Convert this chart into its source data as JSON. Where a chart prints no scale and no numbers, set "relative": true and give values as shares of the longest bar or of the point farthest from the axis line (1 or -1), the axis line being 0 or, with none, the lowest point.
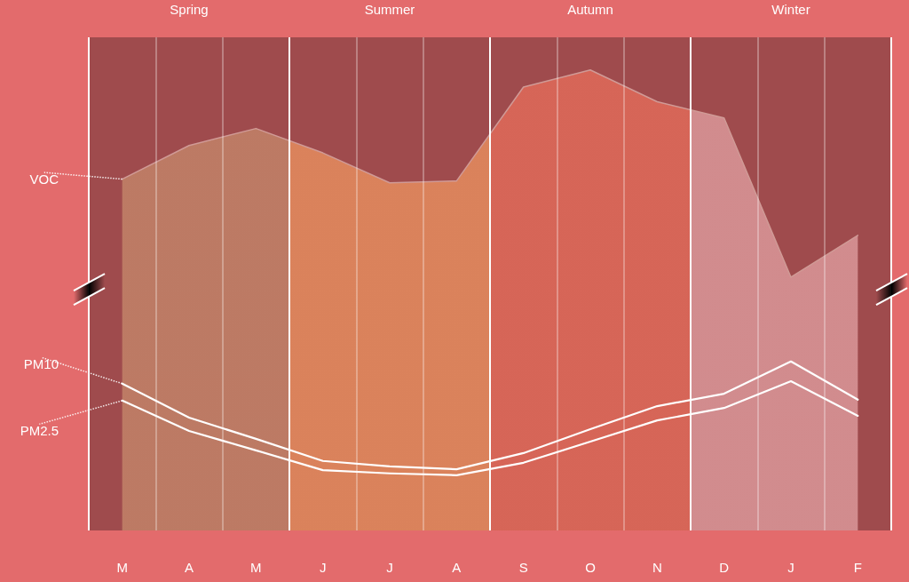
{
  "chart_data": {
    "type": "line",
    "relative": true,
    "grid": "x",
    "categories": [
      "M",
      "A",
      "M",
      "J",
      "J",
      "A",
      "S",
      "O",
      "N",
      "D",
      "J",
      "F"
    ],
    "series": [
      {
        "name": "VOC",
        "type": "area",
        "color": "#d09a96",
        "colors": [
          "#c4866a",
          "#c4866a",
          "#c4866a",
          "#e9905f",
          "#e9905f",
          "#e9905f",
          "#e46c5a",
          "#e46c5a",
          "#e46c5a",
          "#de9c9e",
          "#de9c9e",
          "#de9c9e"
        ],
        "values": [
          0.763,
          0.836,
          0.873,
          0.82,
          0.755,
          0.759,
          0.963,
          1,
          0.931,
          0.896,
          0.55,
          0.641
        ]
      },
      {
        "name": "PM10",
        "color": "#ffffff",
        "values": [
          0.319,
          0.245,
          0.199,
          0.151,
          0.139,
          0.133,
          0.168,
          0.22,
          0.27,
          0.297,
          0.367,
          0.284
        ]
      },
      {
        "name": "PM2.5",
        "color": "#ffffff",
        "values": [
          0.282,
          0.216,
          0.174,
          0.131,
          0.124,
          0.12,
          0.147,
          0.193,
          0.239,
          0.266,
          0.324,
          0.249
        ]
      }
    ],
    "annotations": [
      "Spring",
      "Summer",
      "Autumn",
      "Winter"
    ]
  }
}
